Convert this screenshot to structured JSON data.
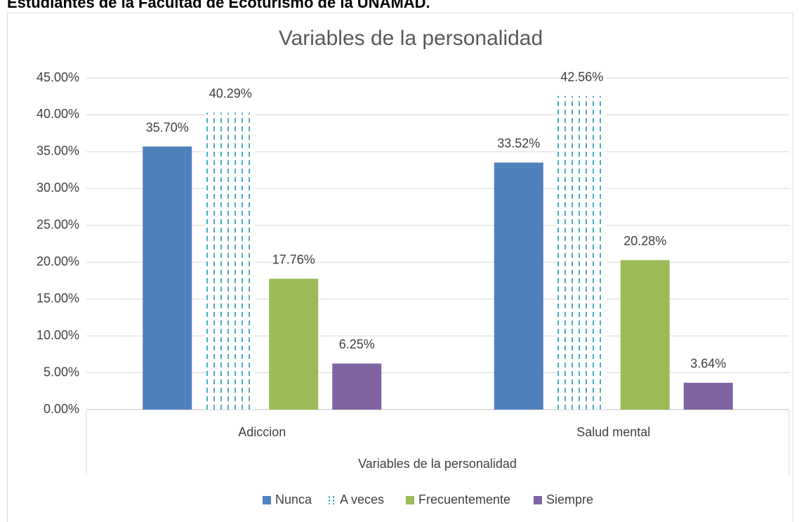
{
  "heading": "Estudiantes de la Facultad de Ecoturismo de la UNAMAD.",
  "chart_data": {
    "type": "bar",
    "title": "Variables de la personalidad",
    "x_label": "Variables de la personalidad",
    "categories": [
      "Adiccion",
      "Salud mental"
    ],
    "series": [
      {
        "name": "Nunca",
        "color": "#4f81bd",
        "values": [
          35.7,
          33.52
        ],
        "value_labels": [
          "35.70%",
          "33.52%"
        ]
      },
      {
        "name": "A veces",
        "color": "#4bacc6",
        "hatch": "dashed-vertical",
        "values": [
          40.29,
          42.56
        ],
        "value_labels": [
          "40.29%",
          "42.56%"
        ]
      },
      {
        "name": "Frecuentemente",
        "color": "#9bbb59",
        "values": [
          17.76,
          20.28
        ],
        "value_labels": [
          "17.76%",
          "20.28%"
        ]
      },
      {
        "name": "Siempre",
        "color": "#8064a2",
        "values": [
          6.25,
          3.64
        ],
        "value_labels": [
          "6.25%",
          "3.64%"
        ]
      }
    ],
    "ylim": [
      0,
      45
    ],
    "yticks": [
      {
        "value": 0,
        "label": "0.00%"
      },
      {
        "value": 5,
        "label": "5.00%"
      },
      {
        "value": 10,
        "label": "10.00%"
      },
      {
        "value": 15,
        "label": "15.00%"
      },
      {
        "value": 20,
        "label": "20.00%"
      },
      {
        "value": 25,
        "label": "25.00%"
      },
      {
        "value": 30,
        "label": "30.00%"
      },
      {
        "value": 35,
        "label": "35.00%"
      },
      {
        "value": 40,
        "label": "40.00%"
      },
      {
        "value": 45,
        "label": "45.00%"
      }
    ],
    "grid": true,
    "legend": "bottom"
  }
}
